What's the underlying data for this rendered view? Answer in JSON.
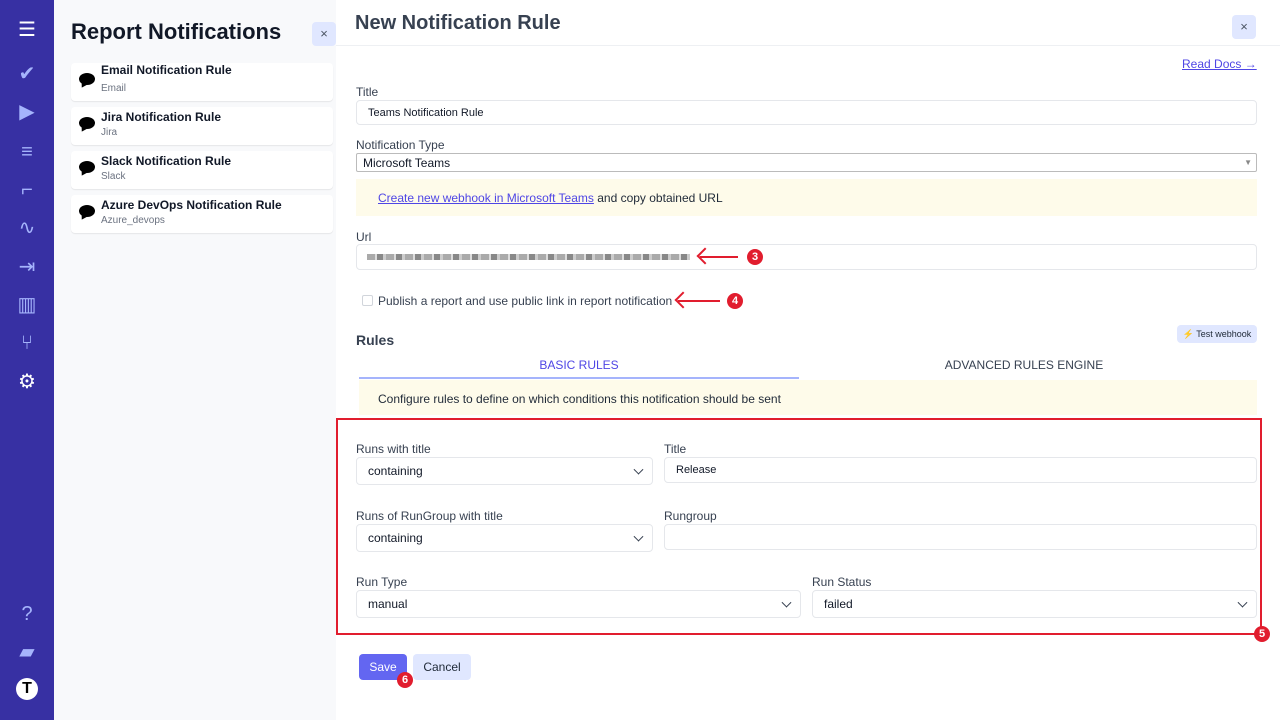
{
  "sidebar": {
    "icons": [
      "menu-icon",
      "check-icon",
      "play-icon",
      "checklist-icon",
      "steps-icon",
      "pulse-icon",
      "import-icon",
      "analytics-icon",
      "branch-icon",
      "settings-icon",
      "help-icon",
      "folder-icon",
      "avatar"
    ]
  },
  "left_panel": {
    "title": "Report Notifications",
    "close": "×",
    "items": [
      {
        "title": "Email Notification Rule",
        "subtitle": "Email"
      },
      {
        "title": "Jira Notification Rule",
        "subtitle": "Jira"
      },
      {
        "title": "Slack Notification Rule",
        "subtitle": "Slack"
      },
      {
        "title": "Azure DevOps Notification Rule",
        "subtitle": "Azure_devops"
      }
    ]
  },
  "main": {
    "title": "New Notification Rule",
    "close": "×",
    "read_docs": "Read Docs →",
    "title_label": "Title",
    "title_value": "Teams Notification Rule",
    "type_label": "Notification Type",
    "type_value": "Microsoft Teams",
    "webhook_link": "Create new webhook in Microsoft Teams",
    "webhook_text": " and copy obtained URL",
    "url_label": "Url",
    "publish_label": "Publish a report and use public link in report notification",
    "rules_heading": "Rules",
    "test_webhook": "Test webhook",
    "tabs": [
      {
        "label": "BASIC RULES",
        "active": true
      },
      {
        "label": "ADVANCED RULES ENGINE",
        "active": false
      }
    ],
    "rules_info": "Configure rules to define on which conditions this notification should be sent",
    "rules": {
      "runs_title_label": "Runs with title",
      "runs_title_value": "containing",
      "title_label": "Title",
      "title_value": "Release",
      "rungroup_title_label": "Runs of RunGroup with title",
      "rungroup_title_value": "containing",
      "rungroup_label": "Rungroup",
      "rungroup_value": "",
      "run_type_label": "Run Type",
      "run_type_value": "manual",
      "run_status_label": "Run Status",
      "run_status_value": "failed"
    },
    "save": "Save",
    "cancel": "Cancel"
  },
  "annotations": [
    "3",
    "4",
    "5",
    "6"
  ],
  "colors": {
    "sidebar": "#3730a3",
    "accent": "#6366f1",
    "annotation": "#e11d2e"
  }
}
